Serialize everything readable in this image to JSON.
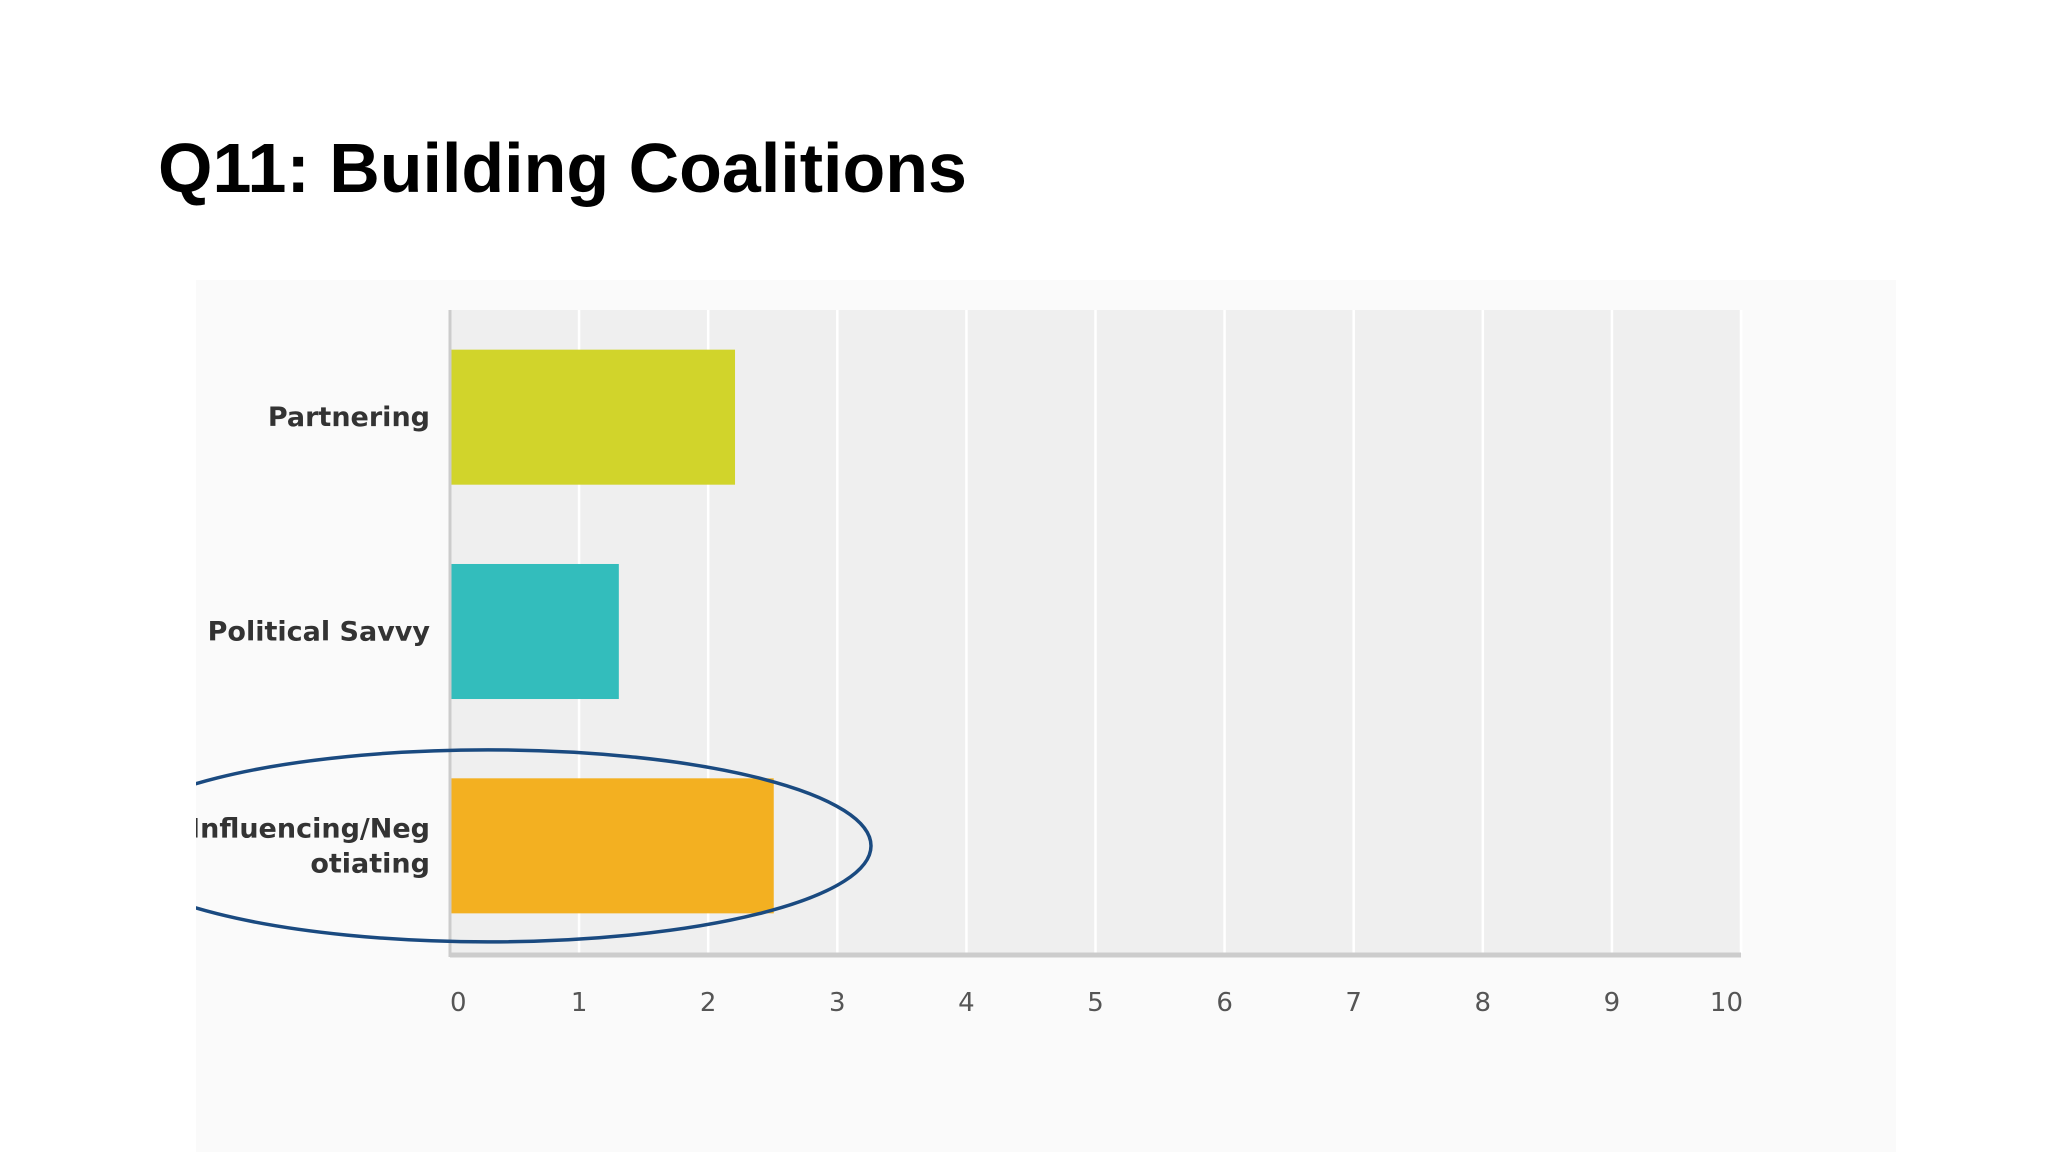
{
  "page_title": "Q11: Building Coalitions",
  "chart_data": {
    "type": "bar",
    "orientation": "horizontal",
    "categories": [
      "Partnering",
      "Political Savvy",
      "Influencing/Negotiating"
    ],
    "category_label_lines": [
      [
        "Partnering"
      ],
      [
        "Political Savvy"
      ],
      [
        "Influencing/Neg",
        "otiating"
      ]
    ],
    "values": [
      2.2,
      1.3,
      2.5
    ],
    "colors": [
      "#d1d42b",
      "#33bdbc",
      "#f3b021"
    ],
    "xlim": [
      0,
      10
    ],
    "xticks": [
      "0",
      "1",
      "2",
      "3",
      "4",
      "5",
      "6",
      "7",
      "8",
      "9",
      "10"
    ],
    "grid": true,
    "legend": "none",
    "highlight": {
      "category": "Influencing/Negotiating",
      "shape": "ellipse",
      "color": "#1a4a80"
    },
    "plot_background": "#efefef",
    "gridline_color": "#ffffff",
    "axis_color": "#cccccc"
  }
}
